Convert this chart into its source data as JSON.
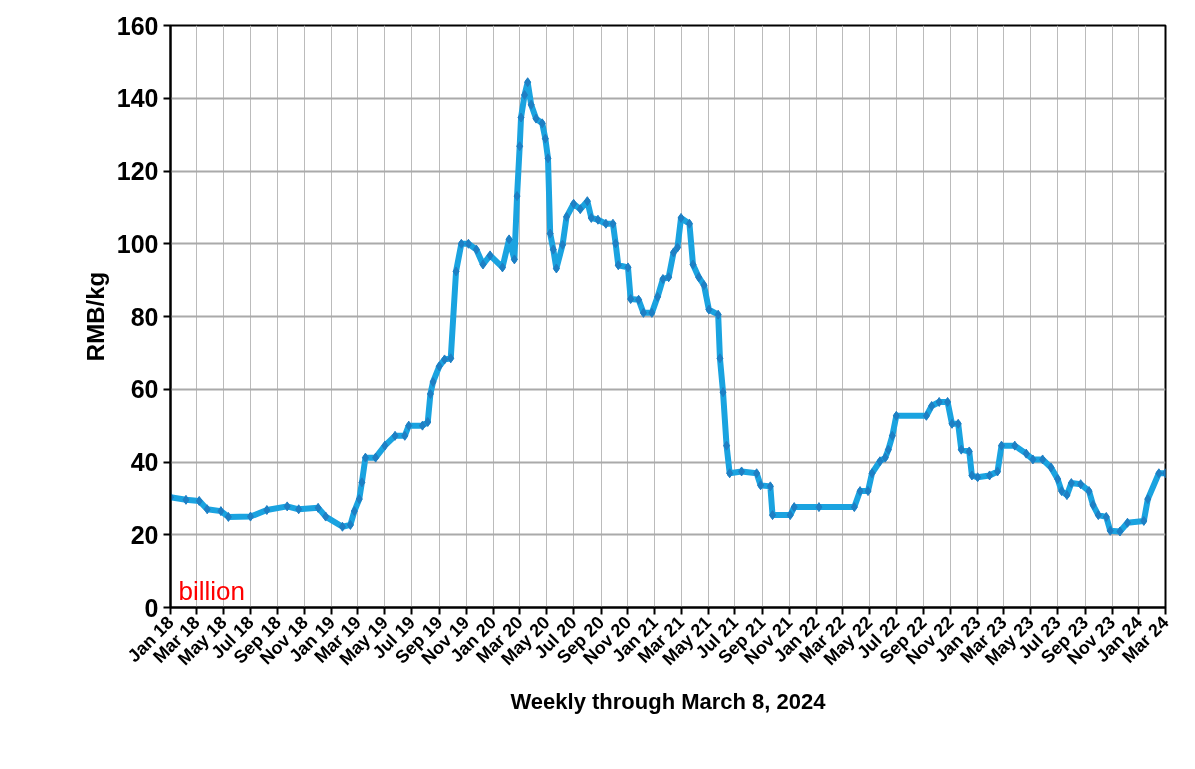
{
  "chart_data": {
    "type": "line",
    "ylabel": "RMB/kg",
    "xlabel": "Weekly through March 8, 2024",
    "xlim": [
      "2018-01-01",
      "2024-03-01"
    ],
    "ylim": [
      0,
      160
    ],
    "yticks": [
      0,
      20,
      40,
      60,
      80,
      100,
      120,
      140,
      160
    ],
    "xticks": [
      {
        "value": "2018-01-01",
        "label": "Jan 18"
      },
      {
        "value": "2018-03-01",
        "label": "Mar 18"
      },
      {
        "value": "2018-05-01",
        "label": "May 18"
      },
      {
        "value": "2018-07-01",
        "label": "Jul 18"
      },
      {
        "value": "2018-09-01",
        "label": "Sep 18"
      },
      {
        "value": "2018-11-01",
        "label": "Nov 18"
      },
      {
        "value": "2019-01-01",
        "label": "Jan 19"
      },
      {
        "value": "2019-03-01",
        "label": "Mar 19"
      },
      {
        "value": "2019-05-01",
        "label": "May 19"
      },
      {
        "value": "2019-07-01",
        "label": "Jul 19"
      },
      {
        "value": "2019-09-01",
        "label": "Sep 19"
      },
      {
        "value": "2019-11-01",
        "label": "Nov 19"
      },
      {
        "value": "2020-01-01",
        "label": "Jan 20"
      },
      {
        "value": "2020-03-01",
        "label": "Mar 20"
      },
      {
        "value": "2020-05-01",
        "label": "May 20"
      },
      {
        "value": "2020-07-01",
        "label": "Jul 20"
      },
      {
        "value": "2020-09-01",
        "label": "Sep 20"
      },
      {
        "value": "2020-11-01",
        "label": "Nov 20"
      },
      {
        "value": "2021-01-01",
        "label": "Jan 21"
      },
      {
        "value": "2021-03-01",
        "label": "Mar 21"
      },
      {
        "value": "2021-05-01",
        "label": "May 21"
      },
      {
        "value": "2021-07-01",
        "label": "Jul 21"
      },
      {
        "value": "2021-09-01",
        "label": "Sep 21"
      },
      {
        "value": "2021-11-01",
        "label": "Nov 21"
      },
      {
        "value": "2022-01-01",
        "label": "Jan 22"
      },
      {
        "value": "2022-03-01",
        "label": "Mar 22"
      },
      {
        "value": "2022-05-01",
        "label": "May 22"
      },
      {
        "value": "2022-07-01",
        "label": "Jul 22"
      },
      {
        "value": "2022-09-01",
        "label": "Sep 22"
      },
      {
        "value": "2022-11-01",
        "label": "Nov 22"
      },
      {
        "value": "2023-01-01",
        "label": "Jan 23"
      },
      {
        "value": "2023-03-01",
        "label": "Mar 23"
      },
      {
        "value": "2023-05-01",
        "label": "May 23"
      },
      {
        "value": "2023-07-01",
        "label": "Jul 23"
      },
      {
        "value": "2023-09-01",
        "label": "Sep 23"
      },
      {
        "value": "2023-11-01",
        "label": "Nov 23"
      },
      {
        "value": "2024-01-01",
        "label": "Jan 24"
      },
      {
        "value": "2024-03-01",
        "label": "Mar 24"
      }
    ],
    "grid": true,
    "marker": "diamond",
    "line_style": "solid",
    "annotations": [
      "billion"
    ],
    "x": [
      "2018-01-01",
      "2018-02-05",
      "2018-03-07",
      "2018-03-25",
      "2018-04-25",
      "2018-05-12",
      "2018-07-01",
      "2018-08-07",
      "2018-09-22",
      "2018-10-18",
      "2018-12-01",
      "2018-12-18",
      "2019-01-25",
      "2019-02-12",
      "2019-02-21",
      "2019-03-04",
      "2019-03-10",
      "2019-03-18",
      "2019-04-10",
      "2019-05-01",
      "2019-05-24",
      "2019-06-15",
      "2019-06-24",
      "2019-07-25",
      "2019-08-06",
      "2019-08-12",
      "2019-08-18",
      "2019-09-01",
      "2019-09-13",
      "2019-09-27",
      "2019-10-09",
      "2019-10-21",
      "2019-11-06",
      "2019-11-24",
      "2019-12-09",
      "2019-12-25",
      "2020-01-22",
      "2020-02-06",
      "2020-02-18",
      "2020-02-24",
      "2020-03-01",
      "2020-03-04",
      "2020-03-12",
      "2020-03-19",
      "2020-03-27",
      "2020-04-07",
      "2020-04-21",
      "2020-04-28",
      "2020-05-04",
      "2020-05-09",
      "2020-05-16",
      "2020-05-23",
      "2020-06-06",
      "2020-06-15",
      "2020-07-01",
      "2020-07-16",
      "2020-08-01",
      "2020-08-10",
      "2020-08-25",
      "2020-09-12",
      "2020-09-28",
      "2020-10-04",
      "2020-10-10",
      "2020-11-01",
      "2020-11-07",
      "2020-11-25",
      "2020-12-06",
      "2020-12-25",
      "2021-01-07",
      "2021-01-19",
      "2021-02-01",
      "2021-02-12",
      "2021-02-21",
      "2021-03-01",
      "2021-03-20",
      "2021-03-28",
      "2021-04-10",
      "2021-04-22",
      "2021-05-03",
      "2021-05-24",
      "2021-05-28",
      "2021-06-04",
      "2021-06-12",
      "2021-06-19",
      "2021-07-16",
      "2021-08-19",
      "2021-08-28",
      "2021-09-19",
      "2021-09-24",
      "2021-11-03",
      "2021-11-12",
      "2022-01-07",
      "2022-03-28",
      "2022-04-10",
      "2022-04-28",
      "2022-05-07",
      "2022-05-25",
      "2022-06-06",
      "2022-06-13",
      "2022-06-22",
      "2022-07-01",
      "2022-09-07",
      "2022-09-19",
      "2022-10-06",
      "2022-10-25",
      "2022-11-04",
      "2022-11-18",
      "2022-11-25",
      "2022-12-13",
      "2022-12-19",
      "2023-01-01",
      "2023-01-28",
      "2023-02-15",
      "2023-02-24",
      "2023-03-26",
      "2023-04-21",
      "2023-05-06",
      "2023-05-28",
      "2023-06-16",
      "2023-07-01",
      "2023-07-10",
      "2023-07-22",
      "2023-08-01",
      "2023-08-22",
      "2023-09-10",
      "2023-09-19",
      "2023-10-01",
      "2023-10-19",
      "2023-10-28",
      "2023-11-19",
      "2023-12-06",
      "2024-01-12",
      "2024-01-21",
      "2024-02-15",
      "2024-03-01"
    ],
    "series": [
      {
        "color": "#1aa3e0",
        "values": [
          30.3,
          29.6,
          29.3,
          27,
          26.5,
          24.9,
          25,
          26.8,
          27.8,
          27,
          27.4,
          25,
          22.2,
          22.7,
          26.5,
          29.8,
          34.4,
          41.2,
          41.2,
          44.5,
          47.2,
          47.2,
          50,
          50,
          51,
          58.7,
          62,
          66.3,
          68.2,
          68.5,
          92.4,
          100,
          100,
          98.4,
          94.3,
          96.8,
          93.5,
          101.2,
          95.7,
          113.1,
          126.8,
          134.7,
          140.9,
          144.4,
          138.2,
          134.4,
          133.1,
          128.9,
          123.5,
          102.8,
          98.4,
          93.2,
          99.7,
          107.4,
          111,
          109.5,
          111.7,
          107.1,
          106.6,
          105.5,
          105.5,
          100.1,
          94.1,
          93.5,
          84.8,
          84.6,
          81,
          81,
          85.4,
          90.3,
          90.8,
          97.6,
          99,
          107.1,
          105.5,
          94.3,
          90.8,
          88.6,
          81.9,
          80.5,
          68.5,
          59.2,
          44.5,
          36.9,
          37.4,
          36.9,
          33.6,
          33.3,
          25.4,
          25.4,
          27.6,
          27.6,
          27.6,
          32,
          32,
          36.9,
          40.2,
          41.2,
          43.4,
          47.2,
          52.7,
          52.7,
          55.4,
          56.5,
          56.5,
          50.5,
          50.5,
          43.4,
          42.9,
          36.3,
          35.8,
          36.3,
          37.4,
          44.5,
          44.5,
          42.3,
          40.7,
          40.7,
          38.5,
          35.3,
          32,
          30.9,
          34.2,
          33.9,
          32,
          28.2,
          25.4,
          24.9,
          21.1,
          20.9,
          23.3,
          23.8,
          29.8,
          36.9,
          36.9
        ]
      }
    ]
  }
}
